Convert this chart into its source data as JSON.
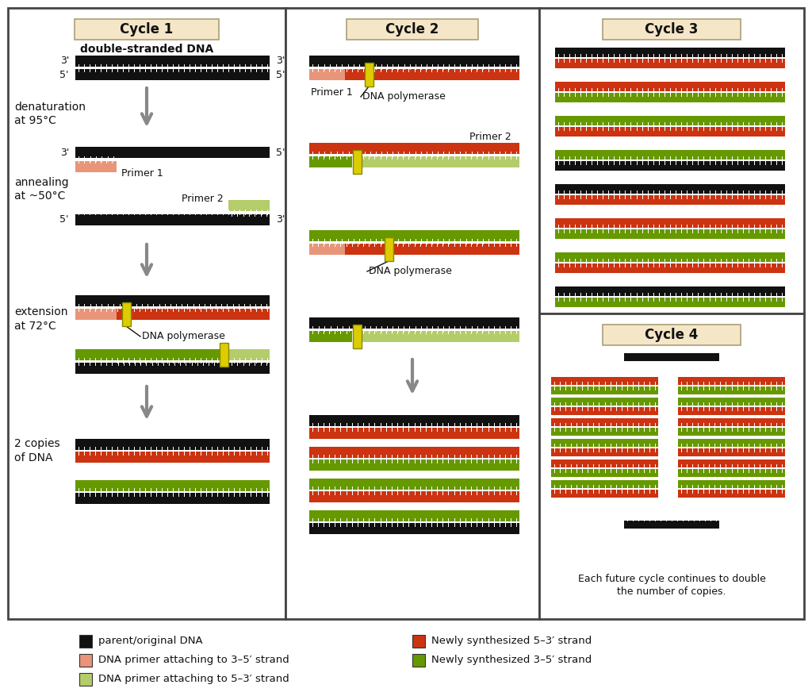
{
  "bg_color": "#ffffff",
  "panel_bg": "#ffffff",
  "title_bg": "#f5e6c8",
  "black_dna": "#111111",
  "red_dna": "#cc3311",
  "salmon_primer": "#e8957a",
  "green_dna": "#669900",
  "lightgreen_primer": "#b5cc6a",
  "yellow_marker": "#ddcc00",
  "arrow_color": "#888888",
  "text_color": "#111111",
  "cycle1_title": "Cycle 1",
  "cycle2_title": "Cycle 2",
  "cycle3_title": "Cycle 3",
  "cycle4_title": "Cycle 4"
}
